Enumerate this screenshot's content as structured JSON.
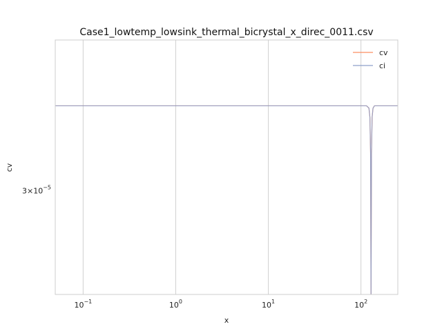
{
  "chart_data": {
    "type": "line",
    "title": "Case1_lowtemp_lowsink_thermal_bicrystal_x_direc_0011.csv",
    "xlabel": "x",
    "ylabel": "cv",
    "xscale": "log",
    "yscale": "log",
    "xlim": [
      0.05,
      250
    ],
    "ylim": [
      2.62e-05,
      3.65e-05
    ],
    "grid": "x-major only",
    "legend_position": "top-right",
    "x_ticks": [
      {
        "value": 0.1,
        "base": "10",
        "exp": "−1"
      },
      {
        "value": 1,
        "base": "10",
        "exp": "0"
      },
      {
        "value": 10,
        "base": "10",
        "exp": "1"
      },
      {
        "value": 100,
        "base": "10",
        "exp": "2"
      }
    ],
    "y_ticks": [
      {
        "value": 3e-05,
        "coef": "3",
        "times": "×",
        "base": "10",
        "exp": "−5"
      }
    ],
    "series": [
      {
        "name": "cv",
        "color": "#fc8d62",
        "x": [
          0.05,
          1,
          10,
          100,
          115,
          122,
          125,
          127,
          128.5,
          130,
          132,
          135,
          140,
          160,
          250
        ],
        "y": [
          3.35e-05,
          3.35e-05,
          3.35e-05,
          3.35e-05,
          3.35e-05,
          3.34e-05,
          3.3e-05,
          3.15e-05,
          2.6e-05,
          3.15e-05,
          3.3e-05,
          3.34e-05,
          3.35e-05,
          3.35e-05,
          3.35e-05
        ]
      },
      {
        "name": "ci",
        "color": "#8da0cb",
        "x": [
          0.05,
          1,
          10,
          100,
          115,
          122,
          125,
          127,
          128.5,
          130,
          132,
          135,
          140,
          160,
          250
        ],
        "y": [
          3.35e-05,
          3.35e-05,
          3.35e-05,
          3.35e-05,
          3.35e-05,
          3.34e-05,
          3.3e-05,
          3.15e-05,
          2.6e-05,
          3.15e-05,
          3.3e-05,
          3.34e-05,
          3.35e-05,
          3.35e-05,
          3.35e-05
        ]
      }
    ]
  }
}
